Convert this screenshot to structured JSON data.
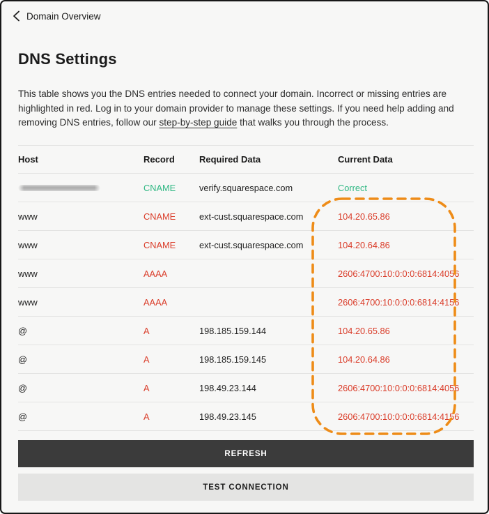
{
  "header": {
    "back_label": "Domain Overview"
  },
  "page": {
    "title": "DNS Settings"
  },
  "description": {
    "text_before_link": "This table shows you the DNS entries needed to connect your domain. Incorrect or missing entries are highlighted in red. Log in to your domain provider to manage these settings. If you need help adding and removing DNS entries, follow our ",
    "link_text": "step-by-step guide",
    "text_after_link": " that walks you through the process."
  },
  "table": {
    "columns": [
      "Host",
      "Record",
      "Required Data",
      "Current Data"
    ],
    "rows": [
      {
        "host": "",
        "host_redacted": true,
        "record": "CNAME",
        "required": "verify.squarespace.com",
        "current": "Correct",
        "status": "ok"
      },
      {
        "host": "www",
        "host_redacted": false,
        "record": "CNAME",
        "required": "ext-cust.squarespace.com",
        "current": "104.20.65.86",
        "status": "error"
      },
      {
        "host": "www",
        "host_redacted": false,
        "record": "CNAME",
        "required": "ext-cust.squarespace.com",
        "current": "104.20.64.86",
        "status": "error"
      },
      {
        "host": "www",
        "host_redacted": false,
        "record": "AAAA",
        "required": "",
        "current": "2606:4700:10:0:0:0:6814:4056",
        "status": "error"
      },
      {
        "host": "www",
        "host_redacted": false,
        "record": "AAAA",
        "required": "",
        "current": "2606:4700:10:0:0:0:6814:4156",
        "status": "error"
      },
      {
        "host": "@",
        "host_redacted": false,
        "record": "A",
        "required": "198.185.159.144",
        "current": "104.20.65.86",
        "status": "error"
      },
      {
        "host": "@",
        "host_redacted": false,
        "record": "A",
        "required": "198.185.159.145",
        "current": "104.20.64.86",
        "status": "error"
      },
      {
        "host": "@",
        "host_redacted": false,
        "record": "A",
        "required": "198.49.23.144",
        "current": "2606:4700:10:0:0:0:6814:4056",
        "status": "error"
      },
      {
        "host": "@",
        "host_redacted": false,
        "record": "A",
        "required": "198.49.23.145",
        "current": "2606:4700:10:0:0:0:6814:4156",
        "status": "error"
      }
    ]
  },
  "buttons": {
    "refresh": "REFRESH",
    "test_connection": "TEST CONNECTION"
  },
  "colors": {
    "success": "#31b884",
    "error": "#da3d2a",
    "highlight": "#ee8c18"
  },
  "icons": {
    "back": "chevron-left"
  }
}
